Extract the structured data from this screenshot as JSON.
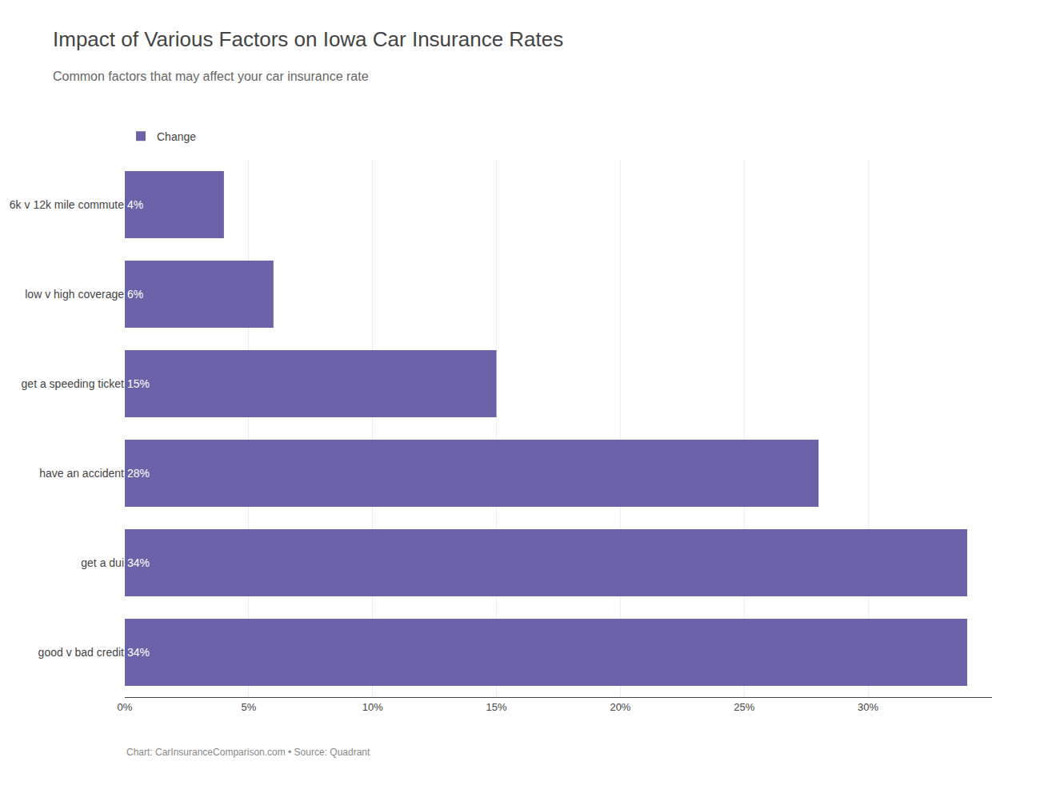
{
  "chart_data": {
    "type": "bar",
    "orientation": "horizontal",
    "title": "Impact of Various Factors on Iowa Car Insurance Rates",
    "subtitle": "Common factors that may affect your car insurance rate",
    "annotations": [
      "Chart: CarInsuranceComparison.com • Source: Quadrant"
    ],
    "categories": [
      "6k v 12k mile commute",
      "low v high coverage",
      "get a speeding ticket",
      "have an accident",
      "get a dui",
      "good v bad credit"
    ],
    "series": [
      {
        "name": "Change",
        "color": "#6b63a7",
        "values": [
          4,
          6,
          15,
          28,
          34,
          34
        ],
        "value_labels": [
          "4%",
          "6%",
          "15%",
          "28%",
          "34%",
          "34%"
        ]
      }
    ],
    "xlim": [
      0,
      35
    ],
    "xticks": [
      {
        "value": 0,
        "label": "0%"
      },
      {
        "value": 5,
        "label": "5%"
      },
      {
        "value": 10,
        "label": "10%"
      },
      {
        "value": 15,
        "label": "15%"
      },
      {
        "value": 20,
        "label": "20%"
      },
      {
        "value": 25,
        "label": "25%"
      },
      {
        "value": 30,
        "label": "30%"
      }
    ],
    "grid": true,
    "legend": "top-left",
    "data_labels": true
  }
}
